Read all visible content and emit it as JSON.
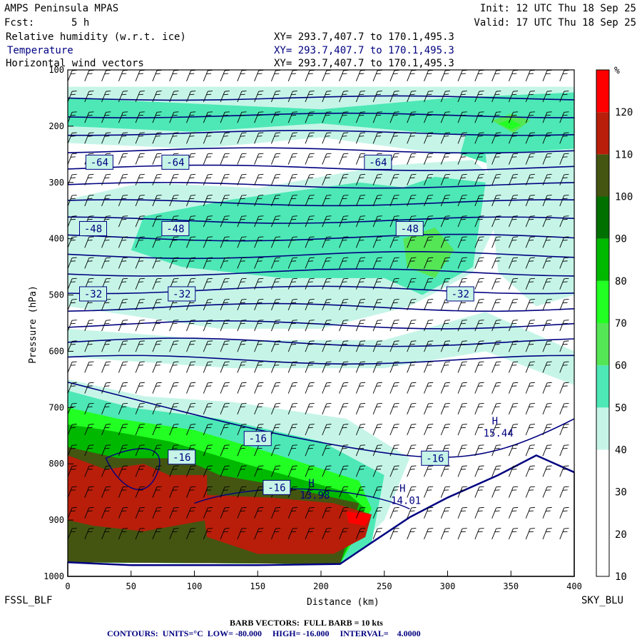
{
  "header": {
    "model": "AMPS Peninsula MPAS",
    "fcst_label": "Fcst:",
    "fcst_value": "5 h",
    "init": "Init: 12 UTC Thu 18 Sep 25",
    "valid": "Valid: 17 UTC Thu 18 Sep 25",
    "fields": [
      {
        "name": "Relative humidity (w.r.t. ice)",
        "xy": "XY= 293.7,407.7 to 170.1,495.3"
      },
      {
        "name": "Temperature",
        "xy": "XY= 293.7,407.7 to 170.1,495.3"
      },
      {
        "name": "Horizontal wind vectors",
        "xy": "XY= 293.7,407.7 to 170.1,495.3"
      }
    ]
  },
  "footer": {
    "left": "FSSL_BLF",
    "right": "SKY_BLU",
    "barb": "BARB VECTORS:  FULL BARB = 10 kts",
    "contours": "CONTOURS:  UNITS=°C  LOW= -80.000     HIGH= -16.000     INTERVAL=    4.0000"
  },
  "colors": {
    "temperature_contour": "#000080",
    "colorbar": [
      "#ffffff",
      "#ffffff",
      "#ffffff",
      "#c6f5e8",
      "#4de8b5",
      "#55e655",
      "#22ff22",
      "#00b800",
      "#007000",
      "#445511",
      "#b81e0a",
      "#ff0000"
    ]
  },
  "chart_data": {
    "type": "heatmap",
    "title": "Relative humidity (w.r.t. ice) / Temperature / Horizontal wind vectors",
    "xlabel": "Distance (km)",
    "ylabel": "Pressure (hPa)",
    "xlim": [
      0,
      400
    ],
    "ylim": [
      1000,
      100
    ],
    "x_ticks": [
      0,
      50,
      100,
      150,
      200,
      250,
      300,
      350,
      400
    ],
    "y_ticks": [
      100,
      200,
      300,
      400,
      500,
      600,
      700,
      800,
      900,
      1000
    ],
    "colorbar": {
      "unit": "%",
      "levels": [
        10,
        20,
        30,
        40,
        50,
        60,
        70,
        80,
        90,
        100,
        110,
        120
      ]
    },
    "terrain_surface_hpa": [
      {
        "x": 0,
        "p": 975
      },
      {
        "x": 50,
        "p": 980
      },
      {
        "x": 100,
        "p": 980
      },
      {
        "x": 150,
        "p": 980
      },
      {
        "x": 215,
        "p": 978
      },
      {
        "x": 240,
        "p": 940
      },
      {
        "x": 270,
        "p": 895
      },
      {
        "x": 300,
        "p": 860
      },
      {
        "x": 340,
        "p": 820
      },
      {
        "x": 370,
        "p": 785
      },
      {
        "x": 400,
        "p": 815
      }
    ],
    "temperature_contours": [
      {
        "value": -64,
        "labels_km": [
          25,
          85,
          245
        ]
      },
      {
        "value": -48,
        "labels_km": [
          20,
          85,
          270
        ]
      },
      {
        "value": -32,
        "labels_km": [
          20,
          90,
          310
        ]
      },
      {
        "value": -16,
        "labels_km": [
          150,
          90,
          165,
          290
        ]
      }
    ],
    "temperature_label_pressures": {
      "-64": 264,
      "-48": 382,
      "-32": 498,
      "-16": [
        755,
        788,
        842,
        790
      ]
    },
    "highs": [
      {
        "label": "H",
        "value": "13.98",
        "x": 190,
        "p": 840
      },
      {
        "label": "H",
        "value": "14.01",
        "x": 262,
        "p": 850
      },
      {
        "label": "H",
        "value": "15.44",
        "x": 335,
        "p": 730
      }
    ]
  }
}
